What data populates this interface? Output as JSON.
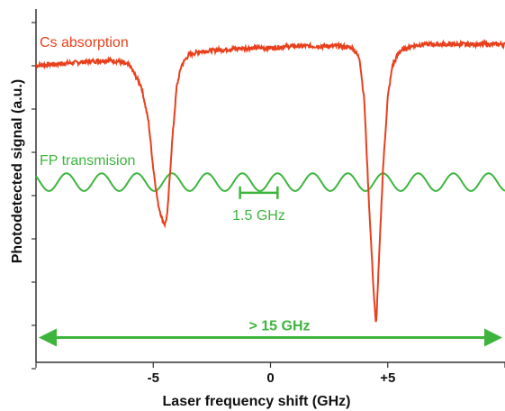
{
  "chart_data": {
    "type": "line",
    "xlabel": "Laser frequency shift (GHz)",
    "ylabel": "Photodetected signal (a.u.)",
    "xlim": [
      -10,
      10
    ],
    "ylim": [
      0,
      1
    ],
    "grid": false,
    "x_tick_labels": [
      {
        "value": -5,
        "label": "-5"
      },
      {
        "value": 0,
        "label": "0"
      },
      {
        "value": 5,
        "label": "+5"
      }
    ],
    "series": [
      {
        "name": "Cs absorption",
        "color": "#e8401c",
        "x": [
          -10,
          -9,
          -8,
          -7,
          -6.5,
          -6,
          -5.5,
          -5.2,
          -5,
          -4.8,
          -4.6,
          -4.5,
          -4.4,
          -4.2,
          -4.0,
          -3.8,
          -3.5,
          -3,
          -2,
          -1,
          0,
          1,
          2,
          3,
          3.5,
          3.8,
          4.0,
          4.2,
          4.4,
          4.5,
          4.6,
          4.8,
          5.0,
          5.2,
          5.5,
          6,
          6.5,
          7,
          8,
          9,
          10
        ],
        "y": [
          0.84,
          0.845,
          0.85,
          0.855,
          0.852,
          0.84,
          0.78,
          0.68,
          0.55,
          0.45,
          0.4,
          0.39,
          0.42,
          0.62,
          0.78,
          0.84,
          0.87,
          0.88,
          0.885,
          0.89,
          0.89,
          0.895,
          0.895,
          0.895,
          0.89,
          0.86,
          0.74,
          0.45,
          0.2,
          0.1,
          0.25,
          0.55,
          0.75,
          0.84,
          0.88,
          0.895,
          0.9,
          0.9,
          0.9,
          0.9,
          0.9
        ]
      },
      {
        "name": "FP transmision",
        "color": "#3db53d",
        "period_ghz": 1.5,
        "center": 0.51,
        "amplitude": 0.025
      }
    ],
    "annotations": [
      {
        "text": "1.5 GHz",
        "span": [
          -1.3,
          0.3
        ],
        "y": 0.48
      },
      {
        "text": "> 15 GHz",
        "span": [
          -10,
          10
        ],
        "y": 0.07
      }
    ]
  }
}
